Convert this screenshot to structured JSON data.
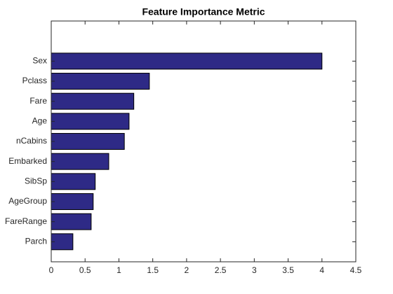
{
  "chart_data": {
    "type": "barh",
    "title": "Feature Importance Metric",
    "categories": [
      "Sex",
      "Pclass",
      "Fare",
      "Age",
      "nCabins",
      "Embarked",
      "SibSp",
      "AgeGroup",
      "FareRange",
      "Parch"
    ],
    "values": [
      4.0,
      1.45,
      1.22,
      1.15,
      1.08,
      0.85,
      0.65,
      0.62,
      0.59,
      0.32
    ],
    "color": "#2e2a86",
    "xlim": [
      0,
      4.5
    ],
    "xticks": [
      0,
      0.5,
      1,
      1.5,
      2,
      2.5,
      3,
      3.5,
      4,
      4.5
    ],
    "grid": false
  }
}
